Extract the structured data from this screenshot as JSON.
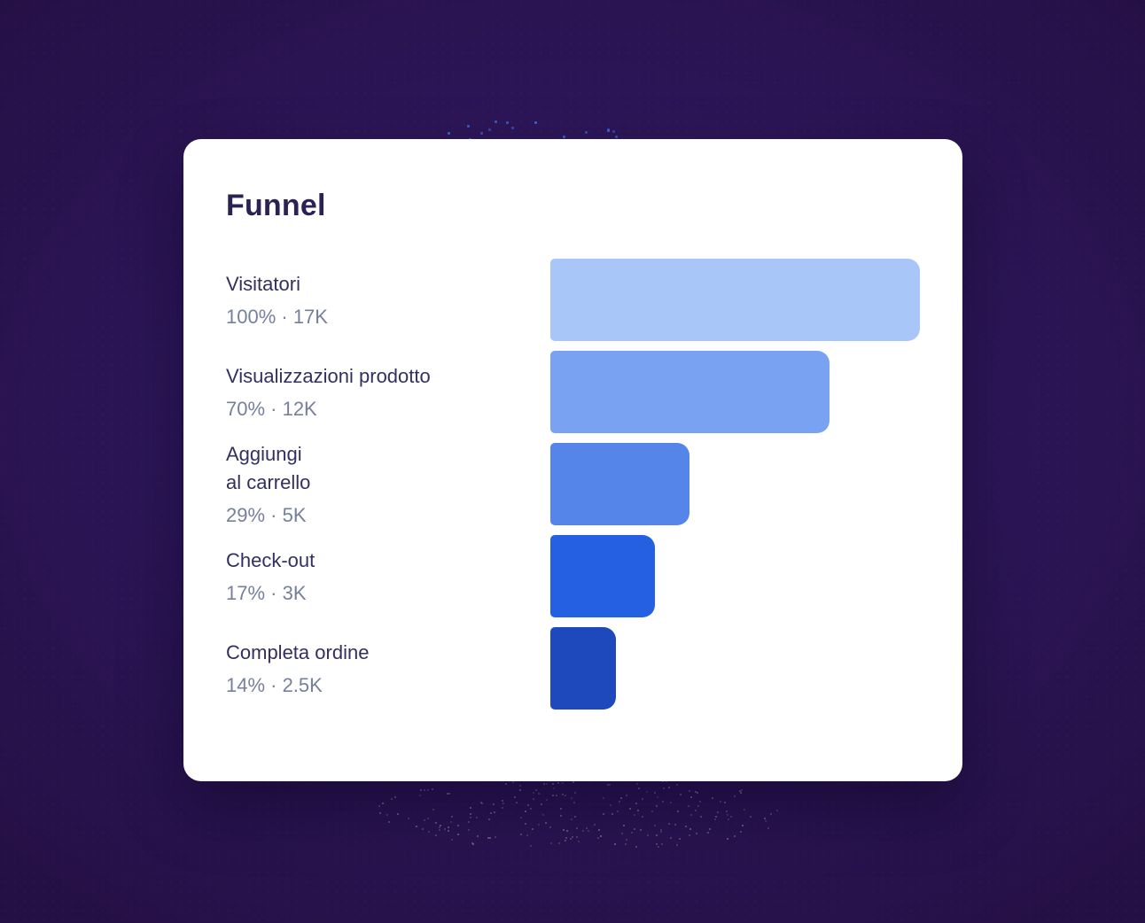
{
  "card": {
    "title": "Funnel"
  },
  "chart_data": {
    "type": "bar",
    "orientation": "horizontal-funnel",
    "title": "Funnel",
    "categories": [
      "Visitatori",
      "Visualizzazioni prodotto",
      "Aggiungi al carrello",
      "Check-out",
      "Completa ordine"
    ],
    "percent_values": [
      100,
      70,
      29,
      17,
      14
    ],
    "count_labels": [
      "17K",
      "12K",
      "5K",
      "3K",
      "2.5K"
    ],
    "count_values": [
      17000,
      12000,
      5000,
      3000,
      2500
    ],
    "bar_width_pct_of_max": [
      100,
      75.5,
      37.6,
      28.3,
      17.7
    ],
    "stages": [
      {
        "label": "Visitatori",
        "stats": "100% · 17K",
        "percent": "100%",
        "count": "17K",
        "width_pct": 100,
        "color": "#a9c6f8"
      },
      {
        "label": "Visualizzazioni prodotto",
        "stats": "70% · 12K",
        "percent": "70%",
        "count": "12K",
        "width_pct": 75.5,
        "color": "#79a3f2"
      },
      {
        "label": "Aggiungi\nal carrello",
        "stats": "29% · 5K",
        "percent": "29%",
        "count": "5K",
        "width_pct": 37.6,
        "color": "#5685ea"
      },
      {
        "label": "Check-out",
        "stats": "17% · 3K",
        "percent": "17%",
        "count": "3K",
        "width_pct": 28.3,
        "color": "#2560e2"
      },
      {
        "label": "Completa ordine",
        "stats": "14% · 2.5K",
        "percent": "14%",
        "count": "2.5K",
        "width_pct": 17.7,
        "color": "#1d49bc"
      }
    ]
  },
  "colors": {
    "background_center": "#37206b",
    "background_edge": "#251045",
    "card_background": "#ffffff",
    "title_text": "#2b2153",
    "label_text": "#333060",
    "stats_text": "#76809b",
    "top_dots": "#3f6cde",
    "bottom_dots": "#8f89a6"
  }
}
